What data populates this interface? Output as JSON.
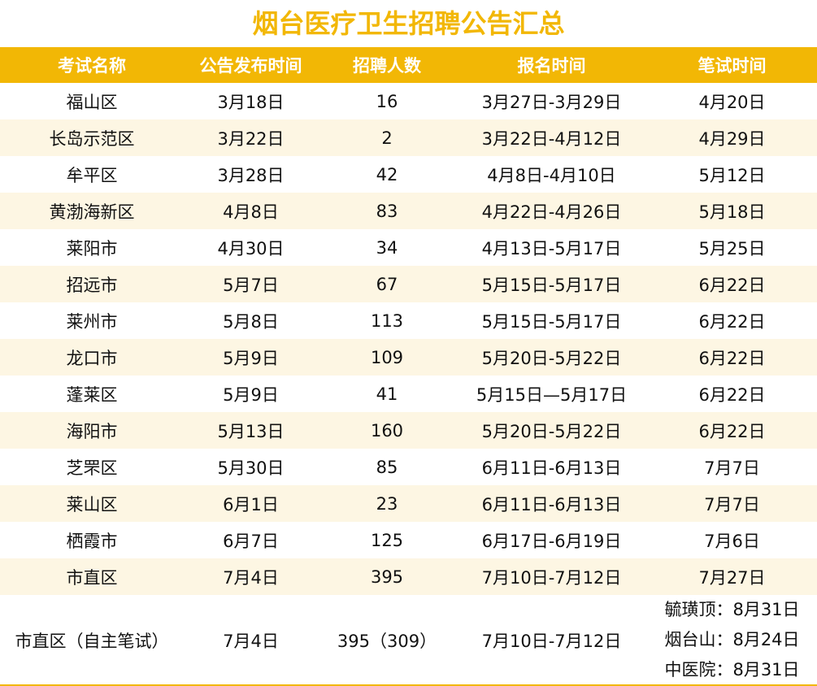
{
  "title": "烟台医疗卫生招聘公告汇总",
  "colors": {
    "accent": "#f2b705",
    "stripe": "#fdf6e3"
  },
  "columns": [
    "考试名称",
    "公告发布时间",
    "招聘人数",
    "报名时间",
    "笔试时间"
  ],
  "rows": [
    [
      "福山区",
      "3月18日",
      "16",
      "3月27日-3月29日",
      "4月20日"
    ],
    [
      "长岛示范区",
      "3月22日",
      "2",
      "3月22日-4月12日",
      "4月29日"
    ],
    [
      "牟平区",
      "3月28日",
      "42",
      "4月8日-4月10日",
      "5月12日"
    ],
    [
      "黄渤海新区",
      "4月8日",
      "83",
      "4月22日-4月26日",
      "5月18日"
    ],
    [
      "莱阳市",
      "4月30日",
      "34",
      "4月13日-5月17日",
      "5月25日"
    ],
    [
      "招远市",
      "5月7日",
      "67",
      "5月15日-5月17日",
      "6月22日"
    ],
    [
      "莱州市",
      "5月8日",
      "113",
      "5月15日-5月17日",
      "6月22日"
    ],
    [
      "龙口市",
      "5月9日",
      "109",
      "5月20日-5月22日",
      "6月22日"
    ],
    [
      "蓬莱区",
      "5月9日",
      "41",
      "5月15日—5月17日",
      "6月22日"
    ],
    [
      "海阳市",
      "5月13日",
      "160",
      "5月20日-5月22日",
      "6月22日"
    ],
    [
      "芝罘区",
      "5月30日",
      "85",
      "6月11日-6月13日",
      "7月7日"
    ],
    [
      "莱山区",
      "6月1日",
      "23",
      "6月11日-6月13日",
      "7月7日"
    ],
    [
      "栖霞市",
      "6月7日",
      "125",
      "6月17日-6月19日",
      "7月6日"
    ],
    [
      "市直区",
      "7月4日",
      "395",
      "7月10日-7月12日",
      "7月27日"
    ]
  ],
  "last_row": {
    "name": "市直区（自主笔试）",
    "publish": "7月4日",
    "count": "395（309）",
    "signup": "7月10日-7月12日",
    "exams": [
      "毓璜顶：8月31日",
      "烟台山：8月24日",
      "中医院：8月31日"
    ]
  }
}
